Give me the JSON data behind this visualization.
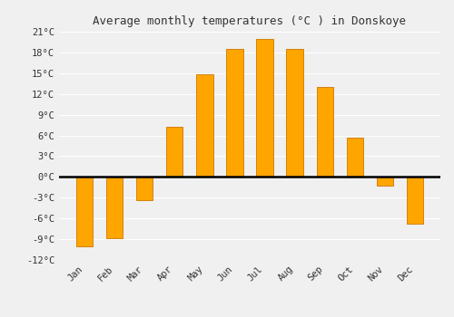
{
  "title": "Average monthly temperatures (°C ) in Donskoye",
  "months": [
    "Jan",
    "Feb",
    "Mar",
    "Apr",
    "May",
    "Jun",
    "Jul",
    "Aug",
    "Sep",
    "Oct",
    "Nov",
    "Dec"
  ],
  "temperatures": [
    -10,
    -8.8,
    -3.3,
    7.2,
    14.8,
    18.5,
    20.0,
    18.5,
    13.0,
    5.7,
    -1.3,
    -6.7
  ],
  "bar_color": "#FFA500",
  "bar_edge_color": "#CC7700",
  "ylim": [
    -12,
    21
  ],
  "yticks": [
    -12,
    -9,
    -6,
    -3,
    0,
    3,
    6,
    9,
    12,
    15,
    18,
    21
  ],
  "ytick_labels": [
    "-12°C",
    "-9°C",
    "-6°C",
    "-3°C",
    "0°C",
    "3°C",
    "6°C",
    "9°C",
    "12°C",
    "15°C",
    "18°C",
    "21°C"
  ],
  "background_color": "#f0f0f0",
  "grid_color": "#ffffff",
  "title_fontsize": 9,
  "tick_fontsize": 7.5,
  "bar_width": 0.55,
  "figsize": [
    5.0,
    3.5
  ],
  "dpi": 100
}
